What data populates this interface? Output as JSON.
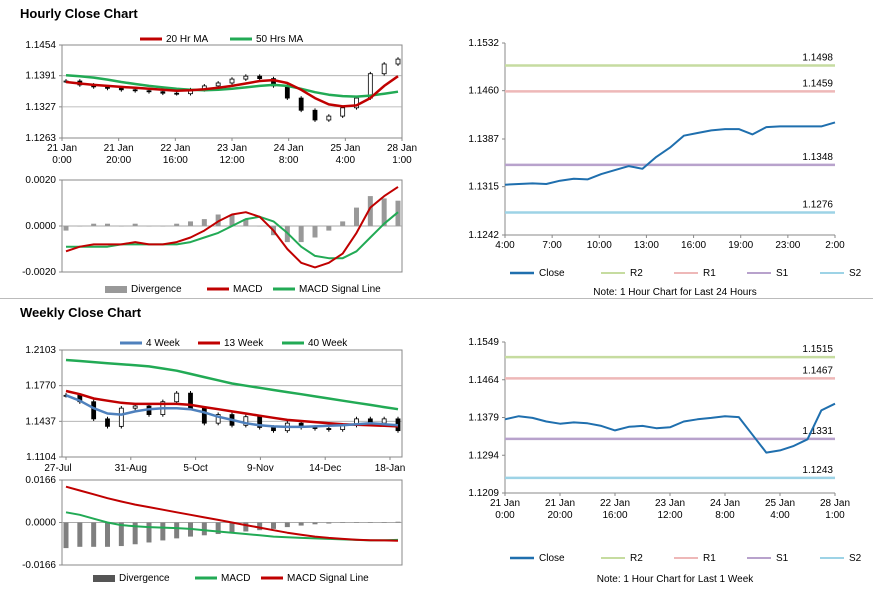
{
  "sections": {
    "hourly_title": "Hourly Close Chart",
    "weekly_title": "Weekly Close Chart"
  },
  "colors": {
    "ma20": "#c00000",
    "ma50": "#22aa55",
    "close": "#1f6fae",
    "r2": "#c6dca0",
    "r1": "#eeb8b8",
    "s1": "#b8a2cc",
    "s2": "#9dd3e6",
    "divergence": "#999999",
    "week4": "#4f81bd",
    "week13": "#c00000",
    "week40": "#22aa55"
  },
  "chart_data": [
    {
      "id": "hourly_price",
      "type": "line",
      "legend": [
        "20 Hr MA",
        "50 Hrs MA"
      ],
      "x_ticks": [
        "21 Jan|0:00",
        "21 Jan|20:00",
        "22 Jan|16:00",
        "23 Jan|12:00",
        "24 Jan|8:00",
        "25 Jan|4:00",
        "28 Jan|1:00"
      ],
      "y_ticks": [
        "1.1454",
        "1.1391",
        "1.1327",
        "1.1263"
      ],
      "ylim": [
        1.1263,
        1.1454
      ],
      "series": [
        {
          "name": "20 Hr MA",
          "values": [
            1.1378,
            1.1375,
            1.1372,
            1.137,
            1.1368,
            1.1366,
            1.1364,
            1.1362,
            1.136,
            1.1361,
            1.1363,
            1.1366,
            1.137,
            1.1375,
            1.138,
            1.1382,
            1.1376,
            1.1362,
            1.1345,
            1.1332,
            1.1328,
            1.133,
            1.1345,
            1.137,
            1.139
          ]
        },
        {
          "name": "50 Hrs MA",
          "values": [
            1.1392,
            1.139,
            1.1387,
            1.1383,
            1.1378,
            1.1374,
            1.137,
            1.1367,
            1.1364,
            1.1362,
            1.1361,
            1.1362,
            1.1364,
            1.1367,
            1.137,
            1.1372,
            1.137,
            1.1364,
            1.1357,
            1.1352,
            1.1349,
            1.1348,
            1.135,
            1.1354,
            1.1358
          ]
        },
        {
          "name": "Price",
          "values": [
            1.138,
            1.1372,
            1.1368,
            1.1365,
            1.1362,
            1.136,
            1.1358,
            1.1355,
            1.1354,
            1.1362,
            1.137,
            1.1376,
            1.1384,
            1.139,
            1.1385,
            1.137,
            1.1345,
            1.132,
            1.13,
            1.1308,
            1.1325,
            1.1345,
            1.1395,
            1.1415,
            1.1425
          ]
        }
      ]
    },
    {
      "id": "hourly_macd",
      "type": "line",
      "legend": [
        "Divergence",
        "MACD",
        "MACD Signal Line"
      ],
      "y_ticks": [
        "0.0020",
        "0.0000",
        "-0.0020"
      ],
      "ylim": [
        -0.002,
        0.002
      ],
      "series": [
        {
          "name": "MACD",
          "values": [
            -0.0011,
            -0.0009,
            -0.0008,
            -0.0008,
            -0.0008,
            -0.0007,
            -0.0008,
            -0.0008,
            -0.0007,
            -0.0005,
            -0.0002,
            0.0002,
            0.0005,
            0.0006,
            0.0004,
            -0.0002,
            -0.001,
            -0.0016,
            -0.0018,
            -0.0016,
            -0.0012,
            -0.0003,
            0.0008,
            0.0013,
            0.0017
          ]
        },
        {
          "name": "MACD Signal Line",
          "values": [
            -0.0009,
            -0.0009,
            -0.0009,
            -0.0009,
            -0.0008,
            -0.0008,
            -0.0008,
            -0.0008,
            -0.0008,
            -0.0007,
            -0.0005,
            -0.0003,
            0.0,
            0.0003,
            0.0004,
            0.0002,
            -0.0003,
            -0.0009,
            -0.0013,
            -0.0014,
            -0.0014,
            -0.0011,
            -0.0005,
            0.0001,
            0.0006
          ]
        },
        {
          "name": "Divergence",
          "values": [
            -0.0002,
            0.0,
            0.0001,
            0.0001,
            0.0,
            0.0001,
            0.0,
            0.0,
            0.0001,
            0.0002,
            0.0003,
            0.0005,
            0.0005,
            0.0003,
            0.0,
            -0.0004,
            -0.0007,
            -0.0007,
            -0.0005,
            -0.0002,
            0.0002,
            0.0008,
            0.0013,
            0.0012,
            0.0011
          ]
        }
      ]
    },
    {
      "id": "hourly_pivots",
      "type": "line",
      "legend": [
        "Close",
        "R2",
        "R1",
        "S1",
        "S2"
      ],
      "note": "Note: 1 Hour Chart for Last 24 Hours",
      "x_ticks": [
        "4:00",
        "7:00",
        "10:00",
        "13:00",
        "16:00",
        "19:00",
        "23:00",
        "2:00"
      ],
      "y_ticks": [
        "1.1532",
        "1.1460",
        "1.1387",
        "1.1315",
        "1.1242"
      ],
      "ylim": [
        1.1242,
        1.1532
      ],
      "levels": [
        {
          "name": "R2",
          "value": 1.1498,
          "label": "1.1498"
        },
        {
          "name": "R1",
          "value": 1.1459,
          "label": "1.1459"
        },
        {
          "name": "S1",
          "value": 1.1348,
          "label": "1.1348"
        },
        {
          "name": "S2",
          "value": 1.1276,
          "label": "1.1276"
        }
      ],
      "series": [
        {
          "name": "Close",
          "values": [
            1.1318,
            1.1319,
            1.132,
            1.1319,
            1.1324,
            1.1327,
            1.1326,
            1.1334,
            1.134,
            1.1346,
            1.1342,
            1.136,
            1.1374,
            1.1392,
            1.1396,
            1.14,
            1.1402,
            1.1402,
            1.1394,
            1.1405,
            1.1406,
            1.1406,
            1.1406,
            1.1406,
            1.1412
          ]
        }
      ]
    },
    {
      "id": "weekly_price",
      "type": "line",
      "legend": [
        "4 Week",
        "13 Week",
        "40 Week"
      ],
      "x_ticks": [
        "27-Jul",
        "31-Aug",
        "5-Oct",
        "9-Nov",
        "14-Dec",
        "18-Jan"
      ],
      "y_ticks": [
        "1.2103",
        "1.1770",
        "1.1437",
        "1.1104"
      ],
      "ylim": [
        1.1104,
        1.2103
      ],
      "series": [
        {
          "name": "4 Week",
          "values": [
            1.168,
            1.163,
            1.156,
            1.151,
            1.15,
            1.153,
            1.155,
            1.156,
            1.156,
            1.155,
            1.152,
            1.148,
            1.145,
            1.142,
            1.14,
            1.139,
            1.1385,
            1.1385,
            1.139,
            1.1395,
            1.14,
            1.141,
            1.142,
            1.141,
            1.14
          ]
        },
        {
          "name": "13 Week",
          "values": [
            1.172,
            1.169,
            1.165,
            1.163,
            1.161,
            1.16,
            1.16,
            1.16,
            1.16,
            1.159,
            1.157,
            1.155,
            1.153,
            1.151,
            1.149,
            1.147,
            1.145,
            1.144,
            1.143,
            1.142,
            1.141,
            1.1405,
            1.14,
            1.1395,
            1.139
          ]
        },
        {
          "name": "40 Week",
          "values": [
            1.201,
            1.2,
            1.199,
            1.198,
            1.197,
            1.196,
            1.195,
            1.193,
            1.191,
            1.188,
            1.185,
            1.182,
            1.179,
            1.177,
            1.175,
            1.173,
            1.171,
            1.169,
            1.167,
            1.165,
            1.163,
            1.161,
            1.159,
            1.157,
            1.155
          ]
        },
        {
          "name": "Price",
          "values": [
            1.168,
            1.162,
            1.146,
            1.139,
            1.156,
            1.158,
            1.15,
            1.162,
            1.17,
            1.156,
            1.142,
            1.15,
            1.14,
            1.148,
            1.138,
            1.135,
            1.142,
            1.138,
            1.137,
            1.136,
            1.14,
            1.146,
            1.142,
            1.146,
            1.135
          ]
        }
      ]
    },
    {
      "id": "weekly_macd",
      "type": "line",
      "legend": [
        "Divergence",
        "MACD",
        "MACD Signal Line"
      ],
      "y_ticks": [
        "0.0166",
        "0.0000",
        "-0.0166"
      ],
      "ylim": [
        -0.0166,
        0.0166
      ],
      "series": [
        {
          "name": "MACD",
          "values": [
            0.004,
            0.003,
            0.0015,
            0.0,
            -0.001,
            -0.0015,
            -0.0018,
            -0.002,
            -0.0022,
            -0.0025,
            -0.003,
            -0.0035,
            -0.004,
            -0.0045,
            -0.005,
            -0.0055,
            -0.0058,
            -0.006,
            -0.0062,
            -0.0064,
            -0.0066,
            -0.0068,
            -0.007,
            -0.0069,
            -0.0068
          ]
        },
        {
          "name": "MACD Signal Line",
          "values": [
            0.014,
            0.0125,
            0.011,
            0.0095,
            0.0082,
            0.007,
            0.006,
            0.005,
            0.004,
            0.003,
            0.002,
            0.001,
            0.0,
            -0.001,
            -0.002,
            -0.003,
            -0.004,
            -0.0048,
            -0.0055,
            -0.006,
            -0.0064,
            -0.0067,
            -0.0069,
            -0.007,
            -0.0071
          ]
        },
        {
          "name": "Divergence",
          "values": [
            -0.01,
            -0.0095,
            -0.0095,
            -0.0095,
            -0.0092,
            -0.0085,
            -0.0078,
            -0.007,
            -0.0062,
            -0.0055,
            -0.005,
            -0.0045,
            -0.004,
            -0.0035,
            -0.003,
            -0.0025,
            -0.0018,
            -0.0012,
            -0.0007,
            -0.0004,
            -0.0002,
            -0.0001,
            -0.0001,
            0.0001,
            0.0003
          ]
        }
      ]
    },
    {
      "id": "weekly_pivots",
      "type": "line",
      "legend": [
        "Close",
        "R2",
        "R1",
        "S1",
        "S2"
      ],
      "note": "Note: 1 Hour Chart for Last 1 Week",
      "x_ticks": [
        "21 Jan|0:00",
        "21 Jan|20:00",
        "22 Jan|16:00",
        "23 Jan|12:00",
        "24 Jan|8:00",
        "25 Jan|4:00",
        "28 Jan|1:00"
      ],
      "y_ticks": [
        "1.1549",
        "1.1464",
        "1.1379",
        "1.1294",
        "1.1209"
      ],
      "ylim": [
        1.1209,
        1.1549
      ],
      "levels": [
        {
          "name": "R2",
          "value": 1.1515,
          "label": "1.1515"
        },
        {
          "name": "R1",
          "value": 1.1467,
          "label": "1.1467"
        },
        {
          "name": "S1",
          "value": 1.1331,
          "label": "1.1331"
        },
        {
          "name": "S2",
          "value": 1.1243,
          "label": "1.1243"
        }
      ],
      "series": [
        {
          "name": "Close",
          "values": [
            1.1375,
            1.1382,
            1.1378,
            1.137,
            1.1365,
            1.1368,
            1.1366,
            1.136,
            1.135,
            1.1358,
            1.136,
            1.1355,
            1.1357,
            1.137,
            1.1375,
            1.1378,
            1.1382,
            1.138,
            1.134,
            1.13,
            1.1305,
            1.1315,
            1.133,
            1.1395,
            1.141
          ]
        }
      ]
    }
  ]
}
